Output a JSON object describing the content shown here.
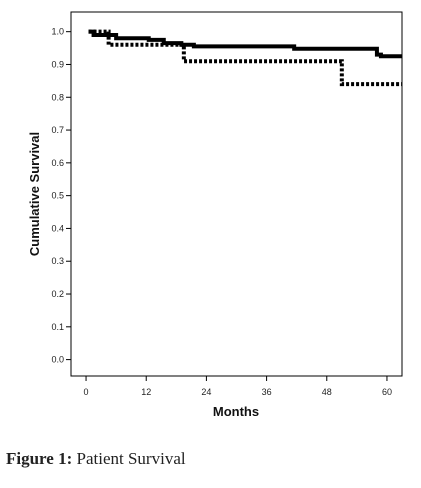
{
  "chart_data": {
    "type": "line",
    "title": "",
    "xlabel": "Months",
    "ylabel": "Cumulative Survival",
    "xlim": [
      -3,
      63
    ],
    "ylim": [
      -0.05,
      1.06
    ],
    "x_ticks": [
      0,
      12,
      24,
      36,
      48,
      60
    ],
    "x_tick_labels": [
      "0",
      "12",
      "24",
      "36",
      "48",
      "60"
    ],
    "y_ticks": [
      0.0,
      0.1,
      0.2,
      0.3,
      0.4,
      0.5,
      0.6,
      0.7,
      0.8,
      0.9,
      1.0
    ],
    "y_tick_labels": [
      "0.0",
      "0.1",
      "0.2",
      "0.3",
      "0.4",
      "0.5",
      "0.6",
      "0.7",
      "0.8",
      "0.9",
      "1.0"
    ],
    "grid": false,
    "legend": "none",
    "series": [
      {
        "style": "solid",
        "color": "#000000",
        "steps": [
          {
            "x": 0.5,
            "y": 1.0
          },
          {
            "x": 1.5,
            "y": 0.99
          },
          {
            "x": 6,
            "y": 0.98
          },
          {
            "x": 12.5,
            "y": 0.975
          },
          {
            "x": 15.5,
            "y": 0.965
          },
          {
            "x": 19,
            "y": 0.96
          },
          {
            "x": 21.5,
            "y": 0.955
          },
          {
            "x": 41.5,
            "y": 0.948
          },
          {
            "x": 58,
            "y": 0.93
          },
          {
            "x": 58.8,
            "y": 0.925
          },
          {
            "x": 63,
            "y": 0.925
          }
        ]
      },
      {
        "style": "dotted",
        "color": "#000000",
        "steps": [
          {
            "x": 0.5,
            "y": 1.0
          },
          {
            "x": 4.5,
            "y": 0.96
          },
          {
            "x": 19.5,
            "y": 0.91
          },
          {
            "x": 51,
            "y": 0.84
          },
          {
            "x": 63,
            "y": 0.84
          }
        ]
      }
    ]
  },
  "caption": {
    "label": "Figure 1:",
    "text": " Patient Survival"
  }
}
